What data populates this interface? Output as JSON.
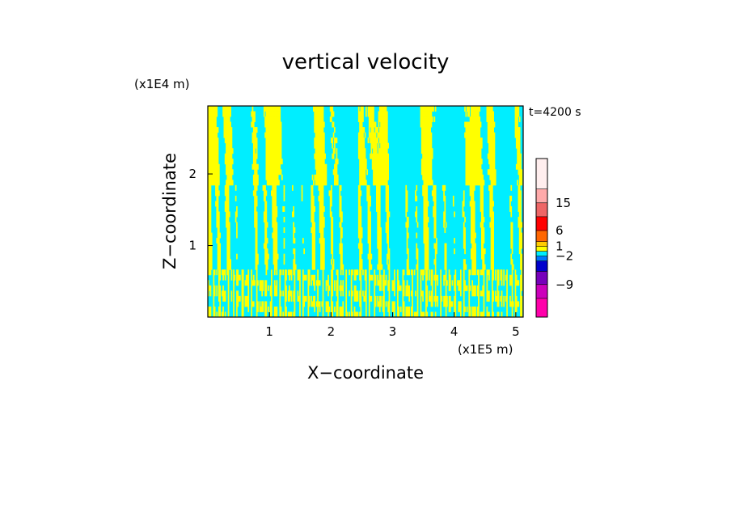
{
  "chart_data": {
    "type": "heatmap",
    "title": "vertical velocity",
    "time_label": "t=4200 s",
    "xlabel": "X−coordinate",
    "ylabel": "Z−coordinate",
    "x_unit": "(x1E5 m)",
    "y_unit": "(x1E4 m)",
    "xlim": [
      0,
      5.12
    ],
    "ylim": [
      0,
      2.95
    ],
    "x_ticks": [
      "1",
      "2",
      "3",
      "4",
      "5"
    ],
    "y_ticks": [
      "1",
      "2"
    ],
    "colorbar": {
      "tick_labels": [
        "15",
        "6",
        "1",
        "−2",
        "−9"
      ],
      "colors": [
        "#ff00aa",
        "#cc00bb",
        "#7700bb",
        "#0000cc",
        "#0077ff",
        "#00eeff",
        "#ffff00",
        "#ffcc00",
        "#ff6600",
        "#ff0000",
        "#ee6666",
        "#ffaaaa",
        "#ffeeee"
      ]
    },
    "field_colors": {
      "positive": "#ffff00",
      "negative": "#00eeff"
    }
  }
}
